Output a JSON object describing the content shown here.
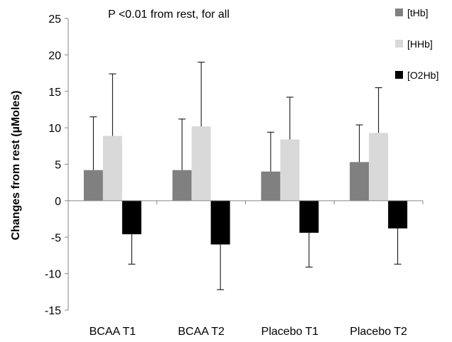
{
  "chart_data": {
    "type": "bar",
    "annotation": "P <0.01 from rest, for all",
    "ylabel": "Changes  from rest  (µMoles)",
    "xlabel": "",
    "ylim": [
      -15,
      25
    ],
    "yticks": [
      25,
      20,
      15,
      10,
      5,
      0,
      -5,
      -10,
      -15
    ],
    "legend_position": "top-right",
    "grid": false,
    "categories": [
      "BCAA T1",
      "BCAA T2",
      "Placebo T1",
      "Placebo T2"
    ],
    "series": [
      {
        "name": "[tHb]",
        "color": "#808080",
        "values": [
          4.2,
          4.2,
          4.0,
          5.3
        ],
        "errors": [
          7.3,
          7.0,
          5.4,
          5.1
        ]
      },
      {
        "name": "[HHb]",
        "color": "#d9d9d9",
        "values": [
          8.9,
          10.2,
          8.4,
          9.3
        ],
        "errors": [
          8.5,
          8.8,
          5.8,
          6.2
        ]
      },
      {
        "name": "[O2Hb]",
        "color": "#000000",
        "values": [
          -4.6,
          -6.0,
          -4.4,
          -3.8
        ],
        "errors": [
          4.1,
          6.2,
          4.7,
          4.9
        ]
      }
    ]
  }
}
